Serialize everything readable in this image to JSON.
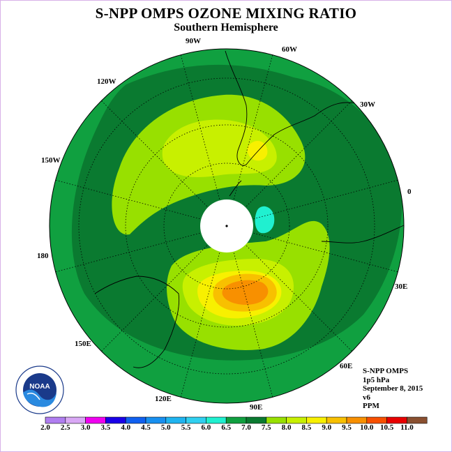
{
  "header": {
    "title": "S-NPP OMPS OZONE MIXING RATIO",
    "subtitle": "Southern Hemisphere"
  },
  "longitude_labels": [
    "90W",
    "60W",
    "30W",
    "0",
    "30E",
    "60E",
    "90E",
    "120E",
    "150E",
    "180",
    "150W",
    "120W"
  ],
  "info": {
    "instrument": "S-NPP OMPS",
    "pressure": "1p5 hPa",
    "date": "September 8, 2015",
    "version": "v6",
    "units": "PPM"
  },
  "legend": {
    "labels": [
      "2.0",
      "2.5",
      "3.0",
      "3.5",
      "4.0",
      "4.5",
      "5.0",
      "5.5",
      "6.0",
      "6.5",
      "7.0",
      "7.5",
      "8.0",
      "8.5",
      "9.0",
      "9.5",
      "10.0",
      "10.5",
      "11.0"
    ],
    "colors": [
      "#b07ef0",
      "#d9a8f5",
      "#f000f0",
      "#1a00e8",
      "#1060f0",
      "#1890f0",
      "#20b4f0",
      "#30d0f0",
      "#20f0d0",
      "#10a040",
      "#0a7a30",
      "#98e000",
      "#c8f000",
      "#f8f000",
      "#f8c000",
      "#f89000",
      "#f85000",
      "#e80000",
      "#8a5030"
    ]
  },
  "logo": {
    "name": "NOAA",
    "icon": "noaa-logo",
    "ring_text": "NATIONAL OCEANIC AND ATMOSPHERIC ADMINISTRATION · U.S. DEPARTMENT OF COMMERCE"
  }
}
